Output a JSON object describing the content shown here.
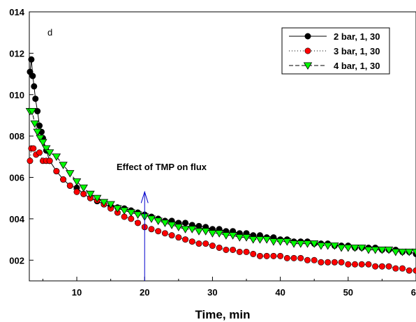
{
  "chart_data": {
    "type": "line",
    "panel_label": "d",
    "xlabel": "Time, min",
    "ylabel": "",
    "xlim": [
      3,
      60
    ],
    "ylim": [
      0.001,
      0.014
    ],
    "x_ticks": [
      10,
      20,
      30,
      40,
      50,
      60
    ],
    "x_tick_labels": [
      "10",
      "20",
      "30",
      "40",
      "50",
      "60"
    ],
    "y_ticks": [
      0.002,
      0.004,
      0.006,
      0.008,
      0.01,
      0.012,
      0.014
    ],
    "y_tick_labels": [
      "002",
      "004",
      "006",
      "008",
      "010",
      "012",
      "014"
    ],
    "grid": false,
    "legend_position": "top-right",
    "series": [
      {
        "name": "2 bar, 1, 30",
        "marker": "circle",
        "line": "solid",
        "color": "#000000",
        "x": [
          3.1,
          3.3,
          3.5,
          3.7,
          3.9,
          4.2,
          4.5,
          4.8,
          5,
          5.5,
          6,
          7,
          8,
          9,
          10,
          11,
          12,
          13,
          14,
          15,
          16,
          17,
          18,
          19,
          20,
          21,
          22,
          23,
          24,
          25,
          26,
          27,
          28,
          29,
          30,
          31,
          32,
          33,
          34,
          35,
          36,
          37,
          38,
          39,
          40,
          41,
          42,
          43,
          44,
          45,
          46,
          47,
          48,
          49,
          50,
          51,
          52,
          53,
          54,
          55,
          56,
          57,
          58,
          59,
          60
        ],
        "y": [
          0.0111,
          0.0117,
          0.0109,
          0.0104,
          0.0098,
          0.0092,
          0.0085,
          0.0082,
          0.0079,
          0.0073,
          0.0068,
          0.0063,
          0.0059,
          0.0056,
          0.0055,
          0.0052,
          0.005,
          0.00485,
          0.0047,
          0.0046,
          0.00455,
          0.0045,
          0.0044,
          0.0043,
          0.0042,
          0.0041,
          0.004,
          0.0039,
          0.0039,
          0.0038,
          0.0038,
          0.0037,
          0.00365,
          0.0036,
          0.0035,
          0.0035,
          0.0034,
          0.0034,
          0.0033,
          0.0033,
          0.0032,
          0.0032,
          0.0031,
          0.0031,
          0.003,
          0.003,
          0.0029,
          0.0029,
          0.0029,
          0.0028,
          0.0028,
          0.0028,
          0.0027,
          0.0027,
          0.0027,
          0.0026,
          0.0026,
          0.0026,
          0.0026,
          0.0025,
          0.0025,
          0.0025,
          0.0024,
          0.0024,
          0.0023
        ]
      },
      {
        "name": "3 bar, 1, 30",
        "marker": "circle",
        "line": "dotted",
        "color": "#ff0000",
        "x": [
          3.1,
          3.3,
          3.6,
          4,
          4.5,
          5,
          5.5,
          6,
          7,
          8,
          9,
          10,
          11,
          12,
          13,
          14,
          15,
          16,
          17,
          18,
          19,
          20,
          21,
          22,
          23,
          24,
          25,
          26,
          27,
          28,
          29,
          30,
          31,
          32,
          33,
          34,
          35,
          36,
          37,
          38,
          39,
          40,
          41,
          42,
          43,
          44,
          45,
          46,
          47,
          48,
          49,
          50,
          51,
          52,
          53,
          54,
          55,
          56,
          57,
          58,
          59,
          60
        ],
        "y": [
          0.0068,
          0.0074,
          0.0074,
          0.0071,
          0.0072,
          0.0068,
          0.0068,
          0.0068,
          0.0063,
          0.0059,
          0.0056,
          0.0053,
          0.0052,
          0.005,
          0.0049,
          0.0047,
          0.0045,
          0.0043,
          0.0041,
          0.004,
          0.0038,
          0.0036,
          0.0035,
          0.0034,
          0.0033,
          0.0032,
          0.0031,
          0.003,
          0.0029,
          0.0028,
          0.0028,
          0.0027,
          0.0026,
          0.0025,
          0.0025,
          0.0024,
          0.0024,
          0.0023,
          0.0022,
          0.0022,
          0.0022,
          0.0022,
          0.0021,
          0.0021,
          0.0021,
          0.002,
          0.002,
          0.0019,
          0.0019,
          0.0019,
          0.0019,
          0.0018,
          0.0018,
          0.0018,
          0.0018,
          0.0017,
          0.0017,
          0.0017,
          0.0016,
          0.0016,
          0.0015,
          0.0015
        ]
      },
      {
        "name": "4 bar, 1, 30",
        "marker": "triangle-down",
        "line": "dashed",
        "color": "#00ff00",
        "x": [
          3.1,
          3.4,
          3.8,
          4.2,
          4.6,
          5,
          5.5,
          6,
          7,
          8,
          9,
          10,
          11,
          12,
          13,
          14,
          15,
          16,
          17,
          18,
          19,
          20,
          21,
          22,
          23,
          24,
          25,
          26,
          27,
          28,
          29,
          30,
          31,
          32,
          33,
          34,
          35,
          36,
          37,
          38,
          39,
          40,
          41,
          42,
          43,
          44,
          45,
          46,
          47,
          48,
          49,
          50,
          51,
          52,
          53,
          54,
          55,
          56,
          57,
          58,
          59,
          60
        ],
        "y": [
          0.0092,
          0.0092,
          0.0086,
          0.0082,
          0.0079,
          0.0077,
          0.0074,
          0.0072,
          0.007,
          0.0066,
          0.0062,
          0.0058,
          0.0055,
          0.0052,
          0.005,
          0.0048,
          0.0047,
          0.0045,
          0.0044,
          0.0043,
          0.0042,
          0.0041,
          0.004,
          0.0039,
          0.0038,
          0.0037,
          0.0036,
          0.0035,
          0.0035,
          0.0034,
          0.0034,
          0.0033,
          0.0033,
          0.0032,
          0.0032,
          0.0031,
          0.0031,
          0.003,
          0.003,
          0.003,
          0.0029,
          0.0029,
          0.0029,
          0.0028,
          0.0028,
          0.0028,
          0.0028,
          0.0027,
          0.0027,
          0.0027,
          0.0026,
          0.0026,
          0.0026,
          0.0026,
          0.0025,
          0.0025,
          0.0025,
          0.0025,
          0.0024,
          0.0024,
          0.0024,
          0.0024
        ]
      }
    ],
    "annotations": [
      {
        "text": "Effect of TMP on flux",
        "x": 22.5,
        "y": 0.00635,
        "arrow_x": 20,
        "arrow_from_y": 0.001,
        "arrow_to_y": 0.0053,
        "arrow_color": "#0000cc"
      }
    ]
  }
}
